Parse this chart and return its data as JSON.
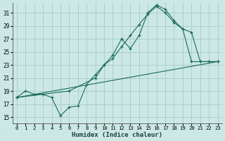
{
  "xlabel": "Humidex (Indice chaleur)",
  "bg_color": "#cce8e5",
  "grid_color": "#aacfcc",
  "line_color": "#1a6b5a",
  "xlim": [
    -0.5,
    23.5
  ],
  "ylim": [
    14.0,
    32.5
  ],
  "xticks": [
    0,
    1,
    2,
    3,
    4,
    5,
    6,
    7,
    8,
    9,
    10,
    11,
    12,
    13,
    14,
    15,
    16,
    17,
    18,
    19,
    20,
    21,
    22,
    23
  ],
  "yticks": [
    15,
    17,
    19,
    21,
    23,
    25,
    27,
    29,
    31
  ],
  "line1_x": [
    0,
    1,
    2,
    3,
    4,
    5,
    6,
    7,
    8,
    9,
    10,
    11,
    12,
    13,
    14,
    15,
    16,
    17,
    18,
    19,
    20,
    21,
    22,
    23
  ],
  "line1_y": [
    18.0,
    19.0,
    18.5,
    18.5,
    18.0,
    15.2,
    16.5,
    16.7,
    20.0,
    21.5,
    23.0,
    24.5,
    27.0,
    25.5,
    27.5,
    31.0,
    32.2,
    31.5,
    29.8,
    28.5,
    23.5,
    23.5,
    23.5,
    23.5
  ],
  "line2_x": [
    0,
    6,
    9,
    10,
    11,
    12,
    13,
    14,
    15,
    16,
    17,
    18,
    19,
    20,
    21,
    22,
    23
  ],
  "line2_y": [
    18.0,
    19.0,
    21.0,
    23.0,
    24.0,
    25.8,
    27.5,
    29.2,
    30.8,
    32.0,
    31.0,
    29.5,
    28.5,
    28.0,
    23.5,
    23.5,
    23.5
  ],
  "line3_x": [
    0,
    23
  ],
  "line3_y": [
    18.0,
    23.5
  ]
}
